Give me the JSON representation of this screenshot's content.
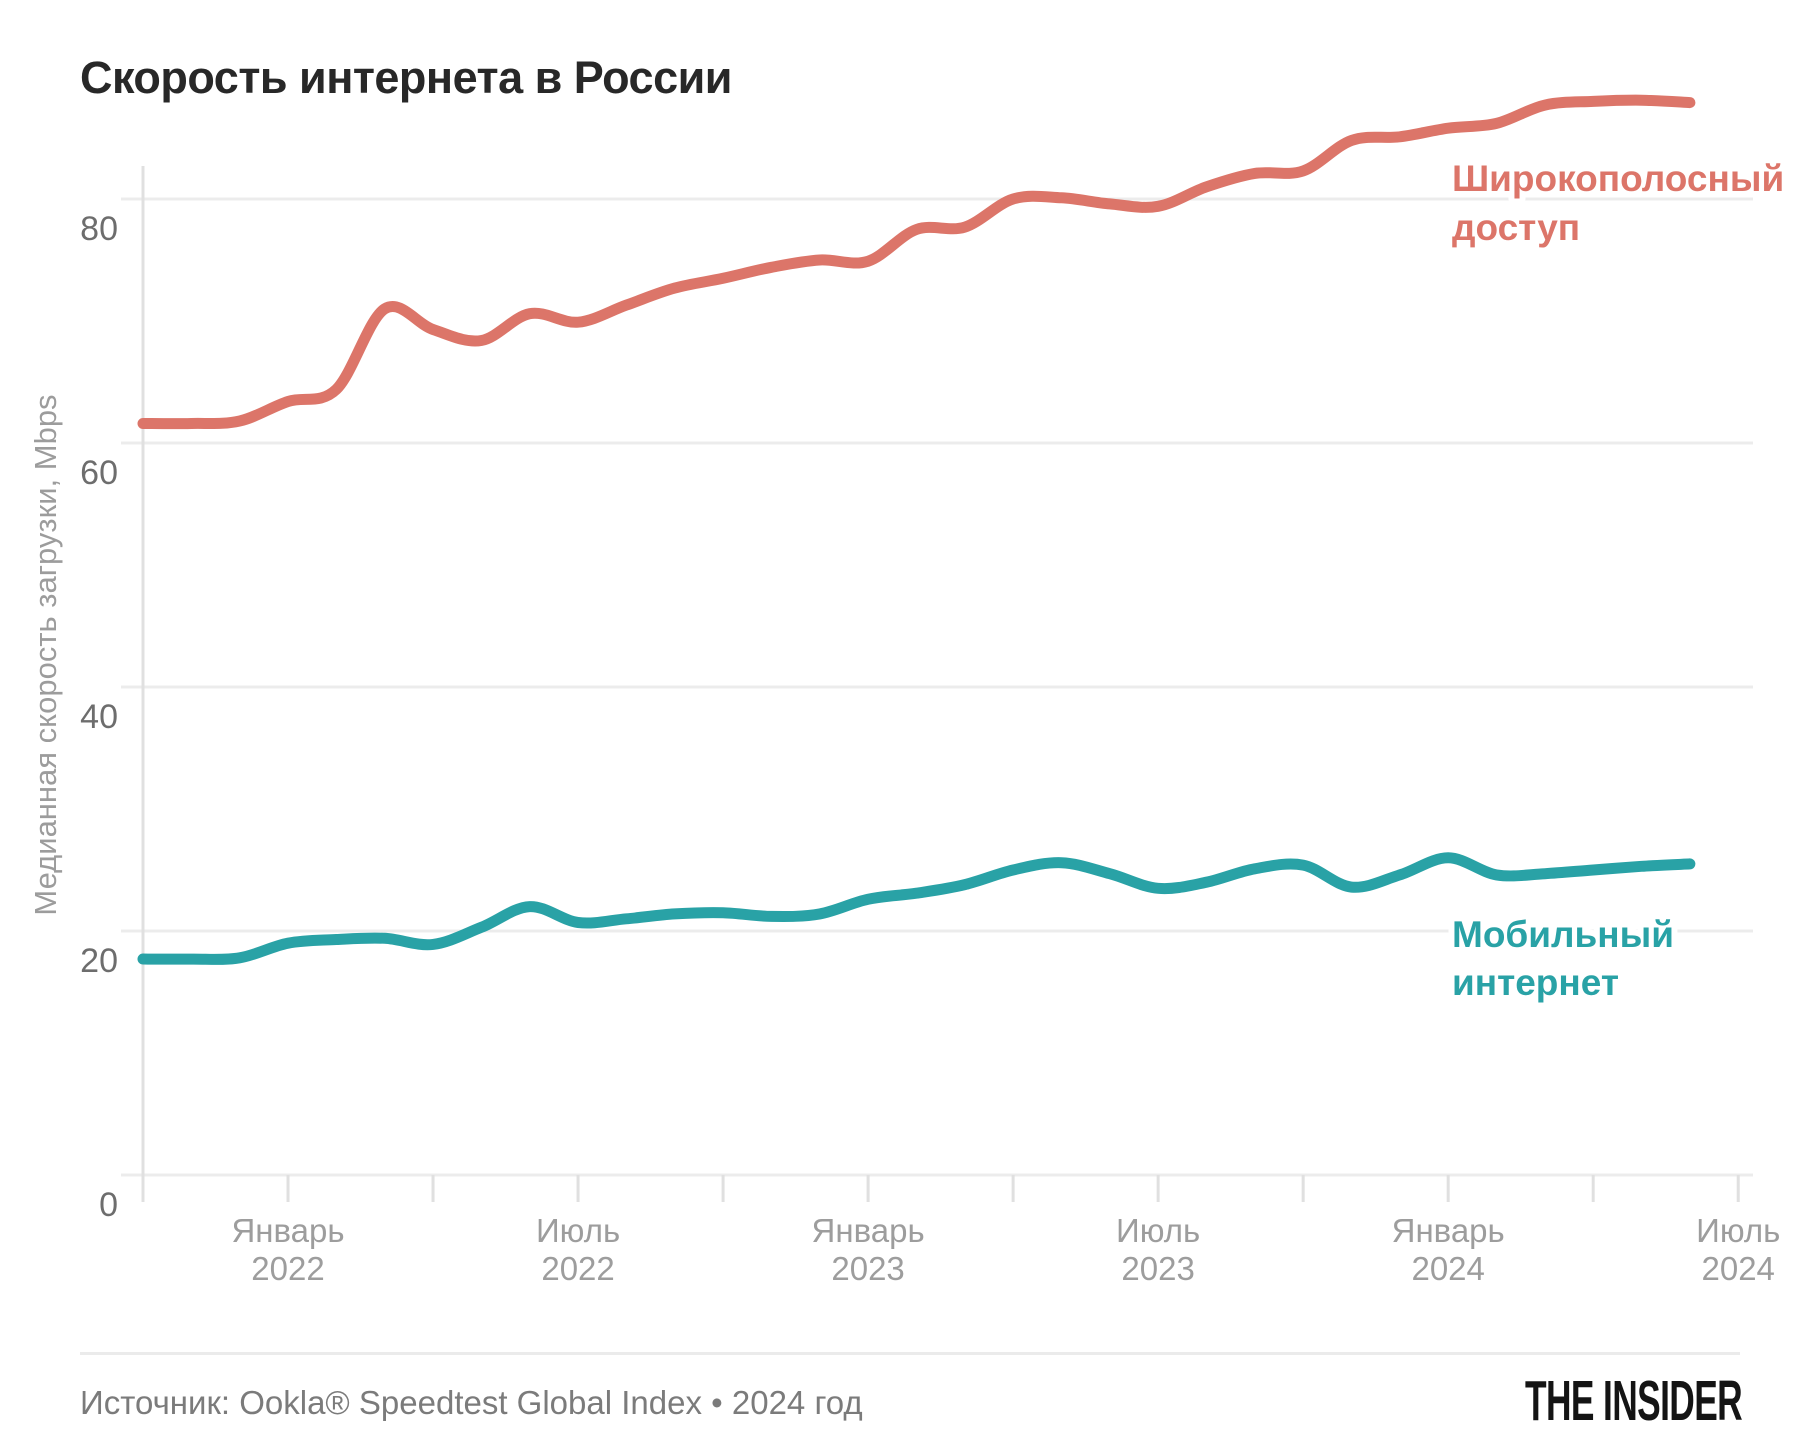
{
  "title": "Скорость интернета в России",
  "footer": {
    "source": "Источник: Ookla® Speedtest Global Index • 2024 год",
    "logo": "THE INSIDER"
  },
  "chart_data": {
    "type": "line",
    "title": "Скорость интернета в России",
    "xlabel": "",
    "ylabel": "Медианная скорость загрузки, Mbps",
    "ylim": [
      0,
      90
    ],
    "grid": "horizontal",
    "legend_position": "inline-right",
    "months": [
      "2021-10",
      "2021-11",
      "2021-12",
      "2022-01",
      "2022-02",
      "2022-03",
      "2022-04",
      "2022-05",
      "2022-06",
      "2022-07",
      "2022-08",
      "2022-09",
      "2022-10",
      "2022-11",
      "2022-12",
      "2023-01",
      "2023-02",
      "2023-03",
      "2023-04",
      "2023-05",
      "2023-06",
      "2023-07",
      "2023-08",
      "2023-09",
      "2023-10",
      "2023-11",
      "2023-12",
      "2024-01",
      "2024-02",
      "2024-03",
      "2024-04",
      "2024-05",
      "2024-06"
    ],
    "y_ticks": [
      0,
      20,
      40,
      60,
      80
    ],
    "x_ticks": [
      {
        "index": 3,
        "lines": [
          "Январь",
          "2022"
        ]
      },
      {
        "index": 6,
        "lines": []
      },
      {
        "index": 9,
        "lines": [
          "Июль",
          "2022"
        ]
      },
      {
        "index": 12,
        "lines": []
      },
      {
        "index": 15,
        "lines": [
          "Январь",
          "2023"
        ]
      },
      {
        "index": 18,
        "lines": []
      },
      {
        "index": 21,
        "lines": [
          "Июль",
          "2023"
        ]
      },
      {
        "index": 24,
        "lines": []
      },
      {
        "index": 27,
        "lines": [
          "Январь",
          "2024"
        ]
      },
      {
        "index": 30,
        "lines": []
      },
      {
        "index": 33,
        "lines": [
          "Июль",
          "2024"
        ]
      }
    ],
    "series": [
      {
        "id": "broadband",
        "name": "Широкополосный доступ",
        "label_lines": [
          "Широкополосный",
          "доступ"
        ],
        "color": "#DC7569",
        "values": [
          61.6,
          61.6,
          61.8,
          63.4,
          64.4,
          71.0,
          69.3,
          68.4,
          70.6,
          69.9,
          71.3,
          72.7,
          73.5,
          74.4,
          75.0,
          74.9,
          77.5,
          77.7,
          80.0,
          80.1,
          79.6,
          79.4,
          81.0,
          82.1,
          82.3,
          84.8,
          85.1,
          85.8,
          86.2,
          87.7,
          88.0,
          88.1,
          87.9
        ]
      },
      {
        "id": "mobile",
        "name": "Мобильный интернет",
        "label_lines": [
          "Мобильный",
          "интернет"
        ],
        "color": "#29A2A6",
        "values": [
          17.7,
          17.7,
          17.8,
          19.0,
          19.3,
          19.4,
          18.9,
          20.3,
          22.0,
          20.7,
          21.0,
          21.4,
          21.5,
          21.2,
          21.4,
          22.6,
          23.1,
          23.8,
          25.0,
          25.6,
          24.7,
          23.5,
          24.0,
          25.1,
          25.4,
          23.6,
          24.6,
          26.0,
          24.6,
          24.7,
          25.0,
          25.3,
          25.5
        ]
      }
    ],
    "colors": {
      "grid": "#ececec",
      "axis": "#e0e0e0",
      "y_tick_label": "#6d6d6d",
      "x_tick_label": "#9d9d9d"
    }
  }
}
